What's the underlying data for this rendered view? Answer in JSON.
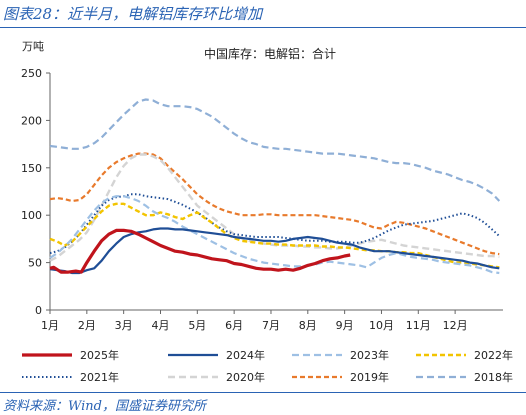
{
  "figure": {
    "title": "图表28：近半月，电解铝库存环比增加",
    "source": "资料来源：Wind，国盛证券研究所"
  },
  "chart_data": {
    "type": "line",
    "title": "中国库存：电解铝：合计",
    "ylabel": "万吨",
    "ylim": [
      0,
      250
    ],
    "yticks": [
      0,
      50,
      100,
      150,
      200,
      250
    ],
    "categories": [
      "1月",
      "2月",
      "3月",
      "4月",
      "5月",
      "6月",
      "7月",
      "8月",
      "9月",
      "10月",
      "11月",
      "12月"
    ],
    "xlim": [
      1,
      13.3
    ],
    "grid": false,
    "legend_position": "bottom",
    "series": [
      {
        "name": "2025年",
        "color": "#c0141c",
        "dash": "solid",
        "width": 3.2,
        "x": [
          1.0,
          1.1,
          1.3,
          1.5,
          1.7,
          1.85,
          2.0,
          2.2,
          2.4,
          2.6,
          2.8,
          3.0,
          3.2,
          3.4,
          3.6,
          3.8,
          4.0,
          4.2,
          4.4,
          4.6,
          4.8,
          5.0,
          5.2,
          5.4,
          5.6,
          5.8,
          6.0,
          6.2,
          6.4,
          6.6,
          6.8,
          7.0,
          7.2,
          7.4,
          7.6,
          7.8,
          8.0,
          8.2,
          8.4,
          8.6,
          8.8,
          9.0,
          9.15
        ],
        "y": [
          44,
          45,
          40,
          40,
          41,
          40,
          50,
          62,
          73,
          80,
          84,
          84,
          83,
          80,
          76,
          72,
          68,
          65,
          62,
          61,
          59,
          58,
          56,
          54,
          53,
          52,
          49,
          48,
          46,
          44,
          43,
          43,
          42,
          43,
          42,
          44,
          47,
          49,
          52,
          54,
          55,
          57,
          58
        ]
      },
      {
        "name": "2024年",
        "color": "#1f4e96",
        "dash": "solid",
        "width": 2.2,
        "x": [
          1.0,
          1.2,
          1.4,
          1.6,
          1.8,
          2.0,
          2.2,
          2.4,
          2.6,
          2.8,
          3.0,
          3.2,
          3.4,
          3.6,
          3.8,
          4.0,
          4.2,
          4.4,
          4.6,
          4.8,
          5.0,
          5.2,
          5.4,
          5.6,
          5.8,
          6.0,
          6.2,
          6.4,
          6.6,
          6.8,
          7.0,
          7.2,
          7.4,
          7.6,
          7.8,
          8.0,
          8.2,
          8.4,
          8.6,
          8.8,
          9.0,
          9.2,
          9.4,
          9.6,
          9.8,
          10.0,
          10.2,
          10.4,
          10.6,
          10.8,
          11.0,
          11.2,
          11.4,
          11.6,
          11.8,
          12.0,
          12.2,
          12.4,
          12.6,
          12.8,
          13.0,
          13.2
        ],
        "y": [
          43,
          42,
          41,
          39,
          39,
          42,
          44,
          52,
          62,
          70,
          77,
          80,
          82,
          83,
          85,
          86,
          86,
          85,
          85,
          84,
          83,
          82,
          81,
          80,
          79,
          77,
          76,
          75,
          74,
          73,
          73,
          72,
          73,
          75,
          76,
          77,
          76,
          75,
          73,
          71,
          70,
          69,
          66,
          64,
          62,
          62,
          62,
          61,
          60,
          59,
          58,
          57,
          56,
          55,
          54,
          53,
          52,
          50,
          49,
          47,
          45,
          44
        ]
      },
      {
        "name": "2023年",
        "color": "#9ec0e4",
        "dash": "long",
        "width": 2.2,
        "x": [
          1.0,
          1.2,
          1.4,
          1.6,
          1.8,
          2.0,
          2.2,
          2.4,
          2.6,
          2.8,
          3.0,
          3.2,
          3.4,
          3.6,
          3.8,
          4.0,
          4.2,
          4.4,
          4.6,
          4.8,
          5.0,
          5.2,
          5.4,
          5.6,
          5.8,
          6.0,
          6.2,
          6.4,
          6.6,
          6.8,
          7.0,
          7.2,
          7.4,
          7.6,
          7.8,
          8.0,
          8.2,
          8.4,
          8.6,
          8.8,
          9.0,
          9.2,
          9.4,
          9.6,
          9.8,
          10.0,
          10.2,
          10.4,
          10.6,
          10.8,
          11.0,
          11.2,
          11.4,
          11.6,
          11.8,
          12.0,
          12.2,
          12.4,
          12.6,
          12.8,
          13.0,
          13.2
        ],
        "y": [
          55,
          60,
          67,
          75,
          85,
          95,
          105,
          113,
          118,
          120,
          120,
          118,
          115,
          110,
          104,
          100,
          97,
          93,
          88,
          84,
          80,
          76,
          72,
          68,
          64,
          60,
          57,
          54,
          52,
          50,
          49,
          48,
          47,
          46,
          46,
          47,
          48,
          50,
          51,
          50,
          49,
          48,
          47,
          45,
          50,
          55,
          58,
          60,
          58,
          56,
          55,
          54,
          53,
          51,
          50,
          49,
          48,
          47,
          45,
          43,
          40,
          39
        ]
      },
      {
        "name": "2022年",
        "color": "#f2c400",
        "dash": "medium",
        "width": 2.4,
        "x": [
          1.0,
          1.2,
          1.4,
          1.6,
          1.8,
          2.0,
          2.2,
          2.4,
          2.6,
          2.8,
          3.0,
          3.2,
          3.4,
          3.6,
          3.8,
          4.0,
          4.2,
          4.4,
          4.6,
          4.8,
          5.0,
          5.2,
          5.4,
          5.6,
          5.8,
          6.0,
          6.2,
          6.4,
          6.6,
          6.8,
          7.0,
          7.2,
          7.4,
          7.6,
          7.8,
          8.0,
          8.2,
          8.4,
          8.6,
          8.8,
          9.0,
          9.2,
          9.4,
          9.6,
          9.8,
          10.0,
          10.2,
          10.4,
          10.6,
          10.8,
          11.0,
          11.2,
          11.4,
          11.6,
          11.8,
          12.0,
          12.2,
          12.4,
          12.6,
          12.8,
          13.0,
          13.2
        ],
        "y": [
          75,
          72,
          68,
          72,
          80,
          88,
          96,
          104,
          110,
          112,
          112,
          108,
          104,
          100,
          100,
          103,
          101,
          98,
          96,
          100,
          103,
          97,
          92,
          86,
          80,
          76,
          73,
          72,
          71,
          70,
          70,
          69,
          69,
          68,
          68,
          68,
          68,
          67,
          67,
          66,
          66,
          65,
          64,
          63,
          63,
          62,
          62,
          61,
          61,
          60,
          60,
          58,
          56,
          54,
          52,
          50,
          50,
          49,
          48,
          47,
          46,
          45
        ]
      },
      {
        "name": "2021年",
        "color": "#1f4e96",
        "dash": "dotted",
        "width": 2.0,
        "x": [
          1.0,
          1.2,
          1.4,
          1.6,
          1.8,
          2.0,
          2.2,
          2.4,
          2.6,
          2.8,
          3.0,
          3.2,
          3.4,
          3.6,
          3.8,
          4.0,
          4.2,
          4.4,
          4.6,
          4.8,
          5.0,
          5.2,
          5.4,
          5.6,
          5.8,
          6.0,
          6.2,
          6.4,
          6.6,
          6.8,
          7.0,
          7.2,
          7.4,
          7.6,
          7.8,
          8.0,
          8.2,
          8.4,
          8.6,
          8.8,
          9.0,
          9.2,
          9.4,
          9.6,
          9.8,
          10.0,
          10.2,
          10.4,
          10.6,
          10.8,
          11.0,
          11.2,
          11.4,
          11.6,
          11.8,
          12.0,
          12.2,
          12.4,
          12.6,
          12.8,
          13.0,
          13.2
        ],
        "y": [
          60,
          62,
          66,
          72,
          80,
          90,
          100,
          110,
          116,
          119,
          120,
          122,
          122,
          120,
          119,
          118,
          117,
          114,
          111,
          107,
          103,
          98,
          92,
          87,
          83,
          80,
          79,
          78,
          77,
          77,
          77,
          77,
          76,
          75,
          74,
          73,
          73,
          73,
          72,
          72,
          72,
          71,
          71,
          73,
          76,
          80,
          84,
          87,
          90,
          91,
          92,
          93,
          94,
          96,
          98,
          100,
          102,
          100,
          97,
          92,
          85,
          78
        ]
      },
      {
        "name": "2020年",
        "color": "#d4d4d4",
        "dash": "long",
        "width": 2.4,
        "x": [
          1.0,
          1.2,
          1.4,
          1.6,
          1.8,
          2.0,
          2.2,
          2.4,
          2.6,
          2.8,
          3.0,
          3.2,
          3.4,
          3.6,
          3.8,
          4.0,
          4.2,
          4.4,
          4.6,
          4.8,
          5.0,
          5.2,
          5.4,
          5.6,
          5.8,
          6.0,
          6.2,
          6.4,
          6.6,
          6.8,
          7.0,
          7.2,
          7.4,
          7.6,
          7.8,
          8.0,
          8.2,
          8.4,
          8.6,
          8.8,
          9.0,
          9.2,
          9.4,
          9.6,
          9.8,
          10.0,
          10.2,
          10.4,
          10.6,
          10.8,
          11.0,
          11.2,
          11.4,
          11.6,
          11.8,
          12.0,
          12.2,
          12.4,
          12.6,
          12.8,
          13.0,
          13.2
        ],
        "y": [
          52,
          56,
          62,
          68,
          74,
          82,
          95,
          110,
          125,
          140,
          152,
          160,
          164,
          164,
          162,
          158,
          150,
          140,
          130,
          120,
          110,
          104,
          98,
          92,
          86,
          80,
          76,
          73,
          71,
          70,
          69,
          68,
          68,
          68,
          67,
          67,
          66,
          66,
          65,
          65,
          66,
          68,
          70,
          72,
          73,
          74,
          72,
          70,
          68,
          67,
          66,
          65,
          64,
          63,
          62,
          61,
          60,
          59,
          58,
          57,
          57,
          56
        ]
      },
      {
        "name": "2019年",
        "color": "#e87a2c",
        "dash": "medium",
        "width": 2.2,
        "x": [
          1.0,
          1.2,
          1.4,
          1.6,
          1.8,
          2.0,
          2.2,
          2.4,
          2.6,
          2.8,
          3.0,
          3.2,
          3.4,
          3.6,
          3.8,
          4.0,
          4.2,
          4.4,
          4.6,
          4.8,
          5.0,
          5.2,
          5.4,
          5.6,
          5.8,
          6.0,
          6.2,
          6.4,
          6.6,
          6.8,
          7.0,
          7.2,
          7.4,
          7.6,
          7.8,
          8.0,
          8.2,
          8.4,
          8.6,
          8.8,
          9.0,
          9.2,
          9.4,
          9.6,
          9.8,
          10.0,
          10.2,
          10.4,
          10.6,
          10.8,
          11.0,
          11.2,
          11.4,
          11.6,
          11.8,
          12.0,
          12.2,
          12.4,
          12.6,
          12.8,
          13.0,
          13.2
        ],
        "y": [
          117,
          118,
          117,
          115,
          116,
          122,
          132,
          142,
          150,
          156,
          160,
          163,
          165,
          165,
          164,
          160,
          152,
          145,
          138,
          130,
          122,
          116,
          111,
          107,
          104,
          102,
          100,
          100,
          100,
          101,
          101,
          100,
          100,
          100,
          100,
          100,
          100,
          99,
          98,
          97,
          96,
          95,
          93,
          90,
          87,
          86,
          90,
          93,
          92,
          90,
          88,
          86,
          83,
          80,
          77,
          74,
          71,
          68,
          65,
          62,
          60,
          59
        ]
      },
      {
        "name": "2018年",
        "color": "#8fafd6",
        "dash": "long",
        "width": 2.2,
        "x": [
          1.0,
          1.2,
          1.4,
          1.6,
          1.8,
          2.0,
          2.2,
          2.4,
          2.6,
          2.8,
          3.0,
          3.2,
          3.4,
          3.6,
          3.8,
          4.0,
          4.2,
          4.4,
          4.6,
          4.8,
          5.0,
          5.2,
          5.4,
          5.6,
          5.8,
          6.0,
          6.2,
          6.4,
          6.6,
          6.8,
          7.0,
          7.2,
          7.4,
          7.6,
          7.8,
          8.0,
          8.2,
          8.4,
          8.6,
          8.8,
          9.0,
          9.2,
          9.4,
          9.6,
          9.8,
          10.0,
          10.2,
          10.4,
          10.6,
          10.8,
          11.0,
          11.2,
          11.4,
          11.6,
          11.8,
          12.0,
          12.2,
          12.4,
          12.6,
          12.8,
          13.0,
          13.2
        ],
        "y": [
          173,
          172,
          171,
          170,
          170,
          172,
          176,
          182,
          190,
          198,
          206,
          213,
          220,
          222,
          221,
          217,
          215,
          215,
          215,
          214,
          212,
          208,
          204,
          198,
          192,
          186,
          181,
          177,
          175,
          172,
          171,
          170,
          170,
          169,
          168,
          167,
          166,
          165,
          165,
          165,
          164,
          163,
          162,
          161,
          160,
          158,
          156,
          155,
          155,
          154,
          152,
          150,
          147,
          145,
          143,
          140,
          137,
          135,
          132,
          128,
          123,
          115
        ]
      }
    ]
  }
}
